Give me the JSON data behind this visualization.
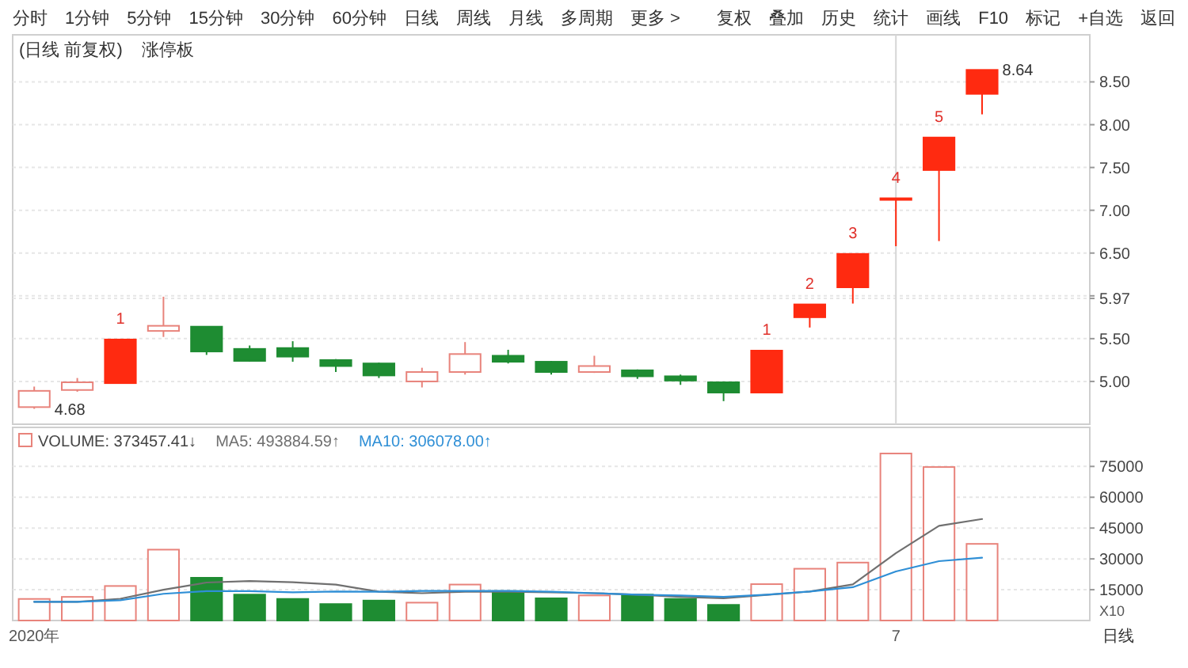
{
  "chart_data": [
    {
      "type": "other",
      "annotations": [
        "分时",
        "1分钟",
        "5分钟",
        "15分钟",
        "30分钟",
        "60分钟",
        "日线",
        "周线",
        "月线",
        "多周期",
        "更多 >"
      ]
    },
    {
      "type": "other",
      "annotations": [
        "复权",
        "叠加",
        "历史",
        "统计",
        "画线",
        "F10",
        "标记",
        "+自选",
        "返回"
      ]
    },
    {
      "type": "candlestick",
      "title": "(日线 前复权)",
      "subtitle": "涨停板",
      "categories": [
        null,
        null,
        null,
        null,
        null,
        null,
        null,
        null,
        null,
        null,
        null,
        null,
        null,
        null,
        null,
        null,
        null,
        null,
        null,
        null,
        null,
        null,
        null
      ],
      "ohlc": [
        [
          4.7,
          4.94,
          4.68,
          4.89
        ],
        [
          4.9,
          5.04,
          4.88,
          4.99
        ],
        [
          4.98,
          5.49,
          4.98,
          5.49
        ],
        [
          5.59,
          5.99,
          5.52,
          5.65
        ],
        [
          5.64,
          5.64,
          5.31,
          5.35
        ],
        [
          5.38,
          5.42,
          5.23,
          5.24
        ],
        [
          5.39,
          5.47,
          5.23,
          5.29
        ],
        [
          5.25,
          5.26,
          5.11,
          5.18
        ],
        [
          5.21,
          5.22,
          5.04,
          5.07
        ],
        [
          5.0,
          5.16,
          4.93,
          5.11
        ],
        [
          5.11,
          5.46,
          5.08,
          5.32
        ],
        [
          5.3,
          5.37,
          5.21,
          5.23
        ],
        [
          5.23,
          5.24,
          5.08,
          5.11
        ],
        [
          5.11,
          5.3,
          5.1,
          5.18
        ],
        [
          5.13,
          5.14,
          5.03,
          5.06
        ],
        [
          5.06,
          5.08,
          4.96,
          5.01
        ],
        [
          4.99,
          5.0,
          4.77,
          4.87
        ],
        [
          4.87,
          5.36,
          4.87,
          5.36
        ],
        [
          5.75,
          5.9,
          5.63,
          5.9
        ],
        [
          6.1,
          6.49,
          5.91,
          6.49
        ],
        [
          7.14,
          7.14,
          6.58,
          7.14
        ],
        [
          7.47,
          7.85,
          6.64,
          7.85
        ],
        [
          8.36,
          8.64,
          8.12,
          8.64
        ]
      ],
      "color": "#e8837b",
      "colors": [
        "#e8837b",
        "#e8837b",
        "#ff2a10",
        "#e8837b",
        "#1e8c32",
        "#1e8c32",
        "#1e8c32",
        "#1e8c32",
        "#1e8c32",
        "#e8837b",
        "#e8837b",
        "#1e8c32",
        "#1e8c32",
        "#e8837b",
        "#1e8c32",
        "#1e8c32",
        "#1e8c32",
        "#ff2a10",
        "#ff2a10",
        "#ff2a10",
        "#ff2a10",
        "#ff2a10",
        "#ff2a10"
      ],
      "value_labels": [
        null,
        null,
        "1",
        null,
        null,
        null,
        null,
        null,
        null,
        null,
        null,
        null,
        null,
        null,
        null,
        null,
        null,
        "1",
        "2",
        "3",
        "4",
        "5",
        null
      ],
      "annotations": [
        "4.68",
        "8.64"
      ],
      "ylim": [
        4.5,
        9.05
      ],
      "yticks": [
        {
          "value": 5,
          "label": "5.00"
        },
        {
          "value": 5.5,
          "label": "5.50"
        },
        {
          "value": 5.97,
          "label": "5.97"
        },
        {
          "value": 6,
          "label": null
        },
        {
          "value": 6.5,
          "label": "6.50"
        },
        {
          "value": 7,
          "label": "7.00"
        },
        {
          "value": 7.5,
          "label": "7.50"
        },
        {
          "value": 8,
          "label": "8.00"
        },
        {
          "value": 8.5,
          "label": "8.50"
        }
      ],
      "grid": "y",
      "ref_lines": [
        {
          "axis": "x",
          "value": "7"
        }
      ]
    },
    {
      "type": "bar",
      "categories": [
        "2020年",
        null,
        null,
        null,
        null,
        null,
        null,
        null,
        null,
        null,
        null,
        null,
        null,
        null,
        null,
        null,
        null,
        null,
        null,
        null,
        "7",
        null,
        null
      ],
      "series": [
        {
          "name": "VOLUME: 373457.41↓",
          "color": "#e8837b",
          "colors": [
            "#e8837b",
            "#e8837b",
            "#e8837b",
            "#e8837b",
            "#1e8c32",
            "#1e8c32",
            "#1e8c32",
            "#1e8c32",
            "#1e8c32",
            "#e8837b",
            "#e8837b",
            "#1e8c32",
            "#1e8c32",
            "#e8837b",
            "#1e8c32",
            "#1e8c32",
            "#1e8c32",
            "#e8837b",
            "#e8837b",
            "#e8837b",
            "#e8837b",
            "#e8837b",
            "#e8837b"
          ],
          "values": [
            10500,
            11500,
            16800,
            34500,
            20800,
            12600,
            10500,
            8000,
            9700,
            8700,
            17500,
            14300,
            10800,
            12200,
            12600,
            10500,
            7600,
            17700,
            25200,
            28200,
            81300,
            74700,
            37300
          ]
        },
        {
          "type": "line",
          "name": "MA5: 493884.59↑",
          "color": "#707070",
          "values": [
            9100,
            9100,
            10600,
            15000,
            18500,
            19200,
            18600,
            17500,
            14000,
            13300,
            14000,
            14000,
            13700,
            13300,
            12600,
            11500,
            10800,
            12500,
            14100,
            17600,
            32800,
            46100,
            49400
          ]
        },
        {
          "type": "line",
          "name": "MA10: 306078.00↑",
          "color": "#2f8fd6",
          "values": [
            9100,
            9100,
            9900,
            13000,
            14300,
            14300,
            13700,
            14100,
            14000,
            14400,
            14400,
            14400,
            14000,
            13300,
            12600,
            12200,
            11500,
            12600,
            14100,
            16200,
            23900,
            28900,
            30600
          ]
        }
      ],
      "ylabel": "X10",
      "ylim": [
        0,
        94000
      ],
      "yticks": [
        15000,
        30000,
        45000,
        60000,
        75000
      ],
      "grid": "y",
      "legend": "top left",
      "annotations": [
        "日线"
      ]
    }
  ]
}
